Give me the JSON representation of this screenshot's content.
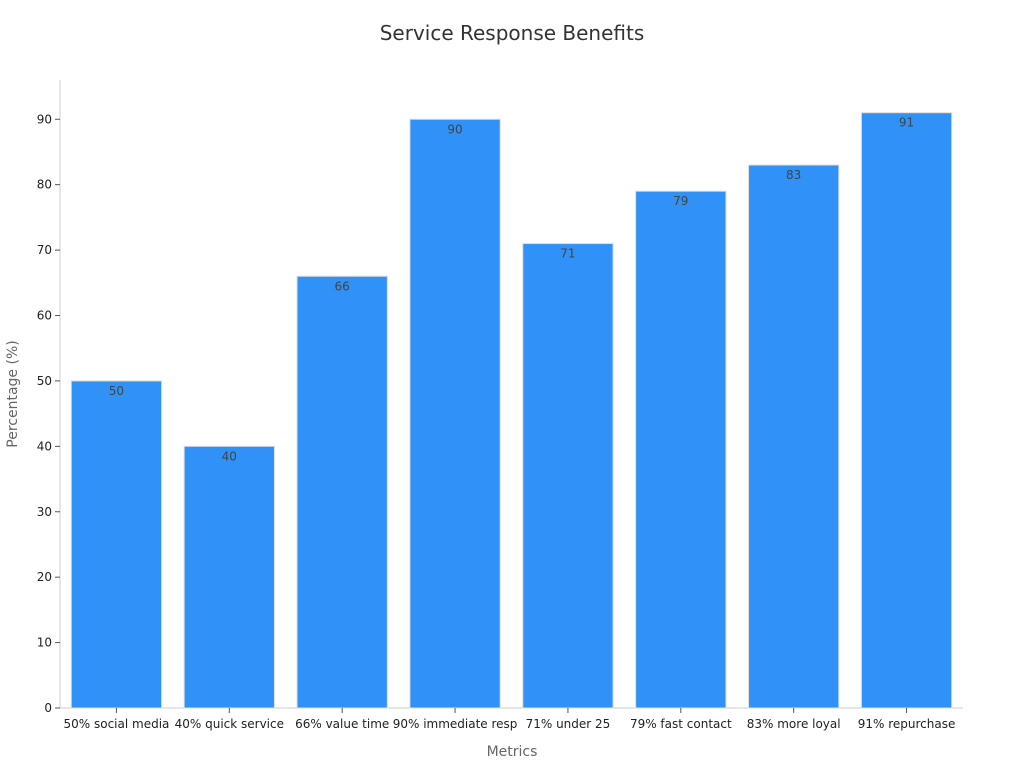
{
  "chart_data": {
    "type": "bar",
    "title": "Service Response Benefits",
    "xlabel": "Metrics",
    "ylabel": "Percentage (%)",
    "categories": [
      "50% social media",
      "40% quick service",
      "66% value time",
      "90% immediate resp",
      "71% under 25",
      "79% fast contact",
      "83% more loyal",
      "91% repurchase"
    ],
    "values": [
      50,
      40,
      66,
      90,
      71,
      79,
      83,
      91
    ],
    "ylim": [
      0,
      96
    ],
    "yticks": [
      0,
      10,
      20,
      30,
      40,
      50,
      60,
      70,
      80,
      90
    ],
    "grid": false,
    "legend": "none",
    "bar_color": "#3092f6",
    "bar_edge_color": "#dddddd"
  }
}
